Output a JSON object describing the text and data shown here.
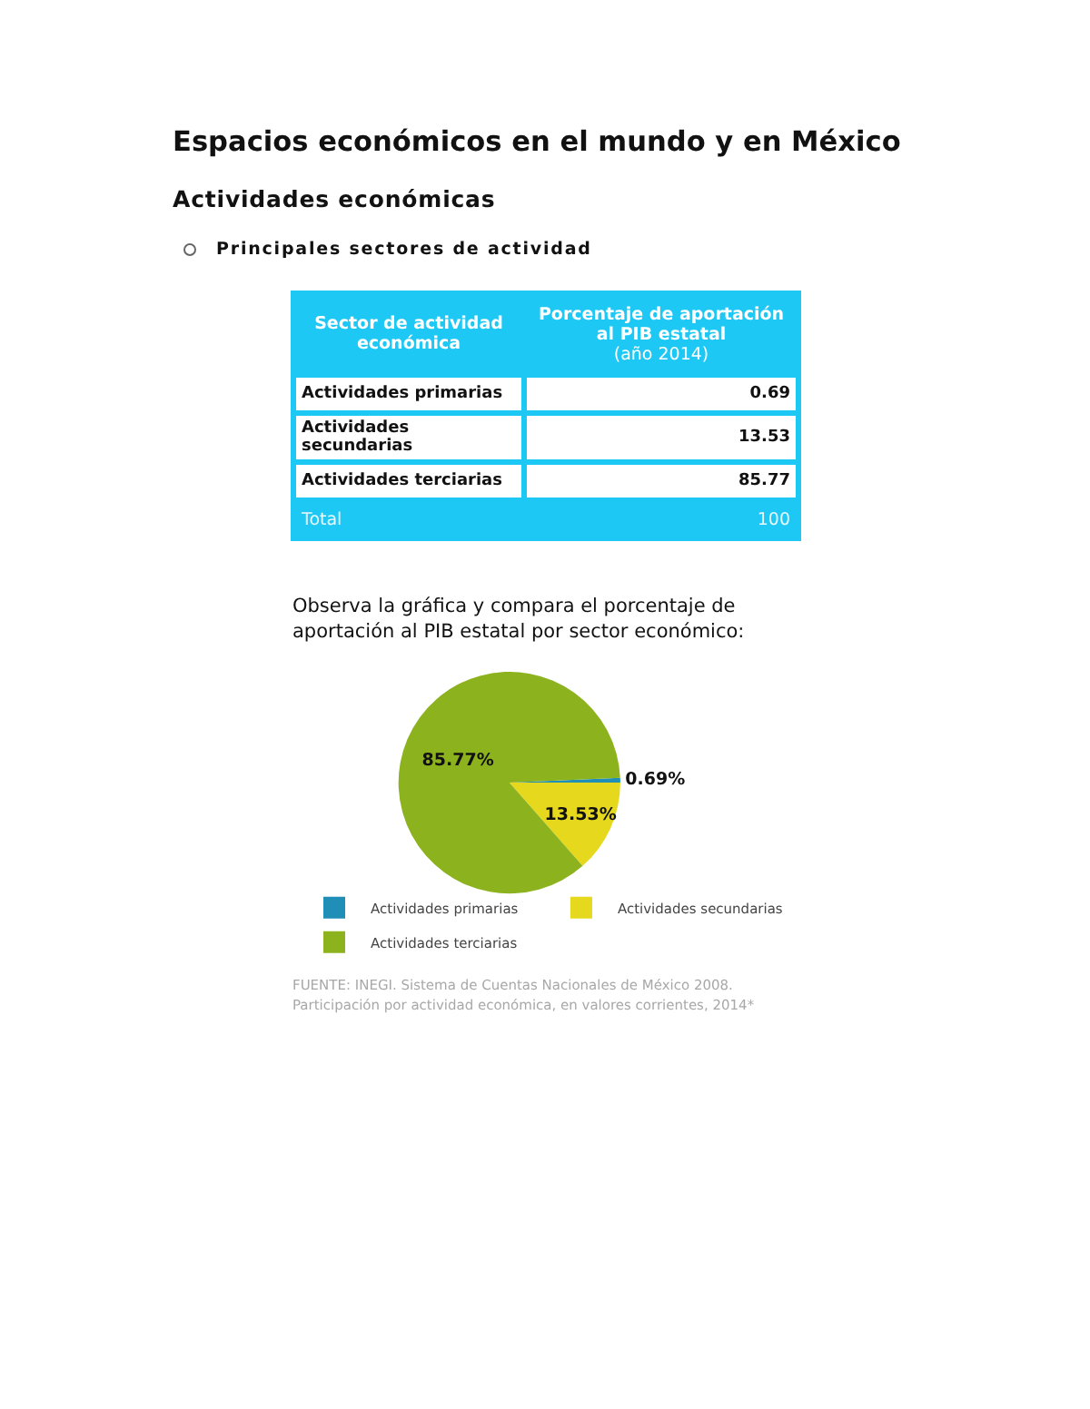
{
  "chart_data": [
    {
      "type": "other",
      "title": "Espacios económicos en el mundo y en México",
      "subtitle": "Actividades económicas",
      "categories": [
        "Actividades primarias",
        "Actividades secundarias",
        "Actividades terciarias"
      ],
      "values": [
        0.69,
        13.53,
        85.77
      ],
      "data_labels": true,
      "totals": [
        "100"
      ],
      "annotations": [
        "Principales sectores de actividad",
        "Sector de actividad económica",
        "Porcentaje de aportación al PIB estatal",
        "(año 2014)",
        "Total"
      ]
    },
    {
      "type": "pie",
      "categories": [
        "Actividades primarias",
        "Actividades secundarias",
        "Actividades terciarias"
      ],
      "values": [
        0.69,
        13.53,
        85.77
      ],
      "colors": [
        "#1f8fb8",
        "#e6d81c",
        "#8cb31e"
      ],
      "value_labels": [
        "0.69%",
        "13.53%",
        "85.77%"
      ],
      "legend": "bottom",
      "annotations": [
        "Observa la gráfica y compara el porcentaje de aportación al PIB estatal por sector económico:",
        "FUENTE: INEGI. Sistema de Cuentas Nacionales de México 2008. Participación por actividad económica, en valores corrientes, 2014*"
      ]
    }
  ]
}
